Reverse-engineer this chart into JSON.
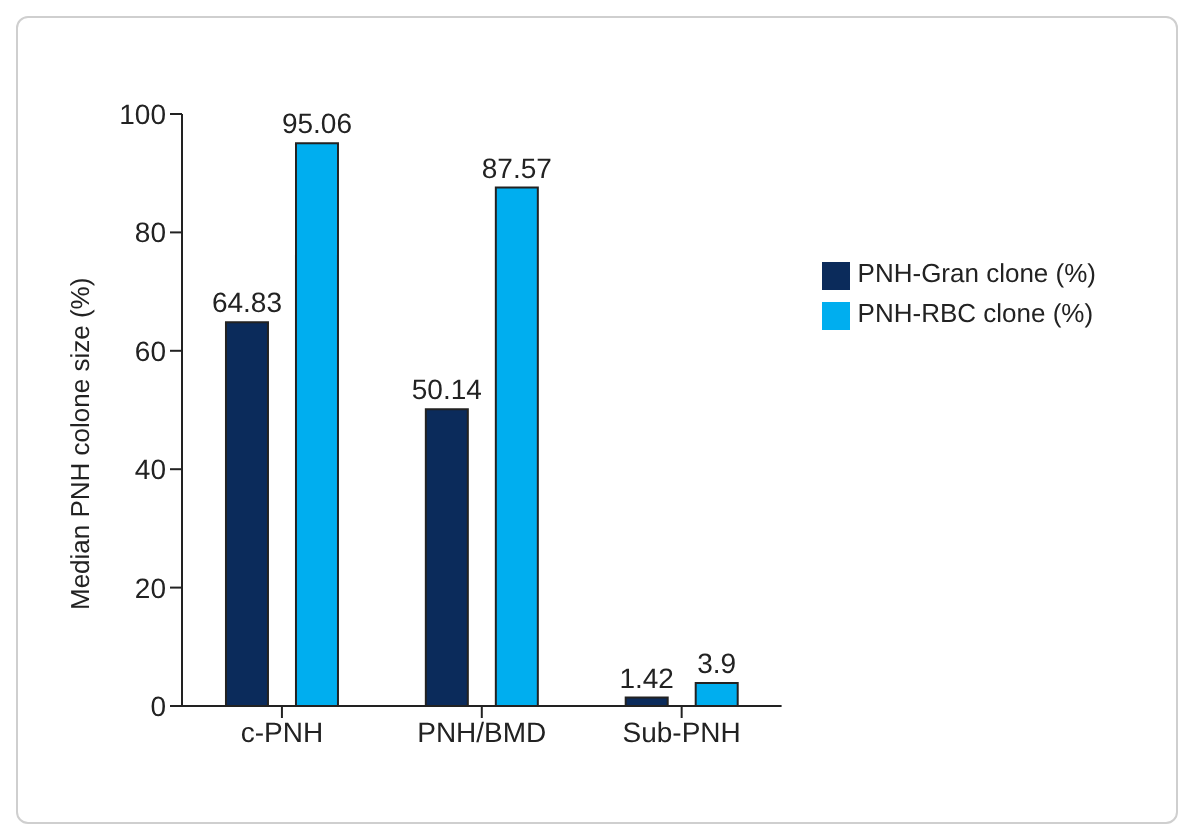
{
  "chart_data": {
    "type": "bar",
    "ylabel": "Median PNH colone size (%)",
    "categories": [
      "c-PNH",
      "PNH/BMD",
      "Sub-PNH"
    ],
    "series": [
      {
        "name": "PNH-Gran clone (%)",
        "color": "#0b2b5b",
        "values": [
          64.83,
          50.14,
          1.42
        ]
      },
      {
        "name": "PNH-RBC clone (%)",
        "color": "#00aeef",
        "values": [
          95.06,
          87.57,
          3.9
        ]
      }
    ],
    "ylim": [
      0,
      100
    ],
    "yticks": [
      0,
      20,
      40,
      60,
      80,
      100
    ],
    "grid": false,
    "legend": "top right",
    "data_labels": true
  }
}
